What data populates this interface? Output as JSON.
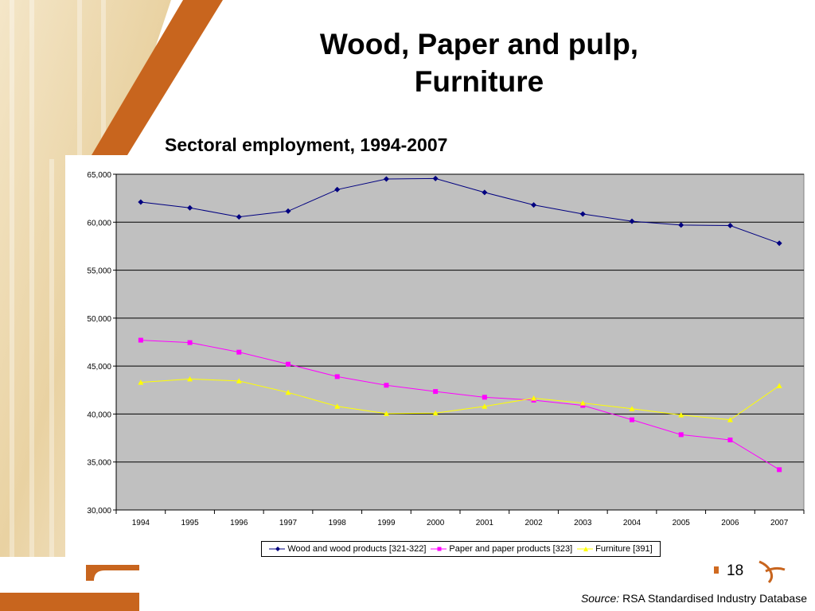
{
  "slide": {
    "title_line1": "Wood, Paper and pulp,",
    "title_line2": "Furniture",
    "page_number": "18",
    "source_label": "Source:",
    "source_text": "RSA Standardised Industry Database"
  },
  "colors": {
    "plot_bg": "#c0c0c0",
    "gridline": "#000000",
    "wood": "#000080",
    "paper": "#ff00ff",
    "furniture": "#ffff00",
    "accent_orange": "#c8651e"
  },
  "chart_data": {
    "type": "line",
    "title": "Sectoral employment, 1994-2007",
    "xlabel": "",
    "ylabel": "",
    "categories": [
      "1994",
      "1995",
      "1996",
      "1997",
      "1998",
      "1999",
      "2000",
      "2001",
      "2002",
      "2003",
      "2004",
      "2005",
      "2006",
      "2007"
    ],
    "ylim": [
      30000,
      65000
    ],
    "yticks": [
      30000,
      35000,
      40000,
      45000,
      50000,
      55000,
      60000,
      65000
    ],
    "ytick_labels": [
      "30,000",
      "35,000",
      "40,000",
      "45,000",
      "50,000",
      "55,000",
      "60,000",
      "65,000"
    ],
    "grid": "horizontal",
    "legend_position": "bottom",
    "series": [
      {
        "name": "Wood and wood products [321-322]",
        "color": "#000080",
        "marker": "diamond",
        "values": [
          62100,
          61500,
          60550,
          61150,
          63400,
          64500,
          64550,
          63100,
          61800,
          60850,
          60100,
          59700,
          59650,
          57800
        ]
      },
      {
        "name": "Paper and paper products [323]",
        "color": "#ff00ff",
        "marker": "square",
        "values": [
          47700,
          47450,
          46450,
          45200,
          43900,
          43000,
          42350,
          41750,
          41450,
          40900,
          39400,
          37850,
          37300,
          34200
        ]
      },
      {
        "name": "Furniture [391]",
        "color": "#ffff00",
        "marker": "triangle",
        "values": [
          43300,
          43650,
          43450,
          42250,
          40800,
          40050,
          40100,
          40800,
          41650,
          41150,
          40550,
          39900,
          39400,
          42950
        ]
      }
    ]
  }
}
